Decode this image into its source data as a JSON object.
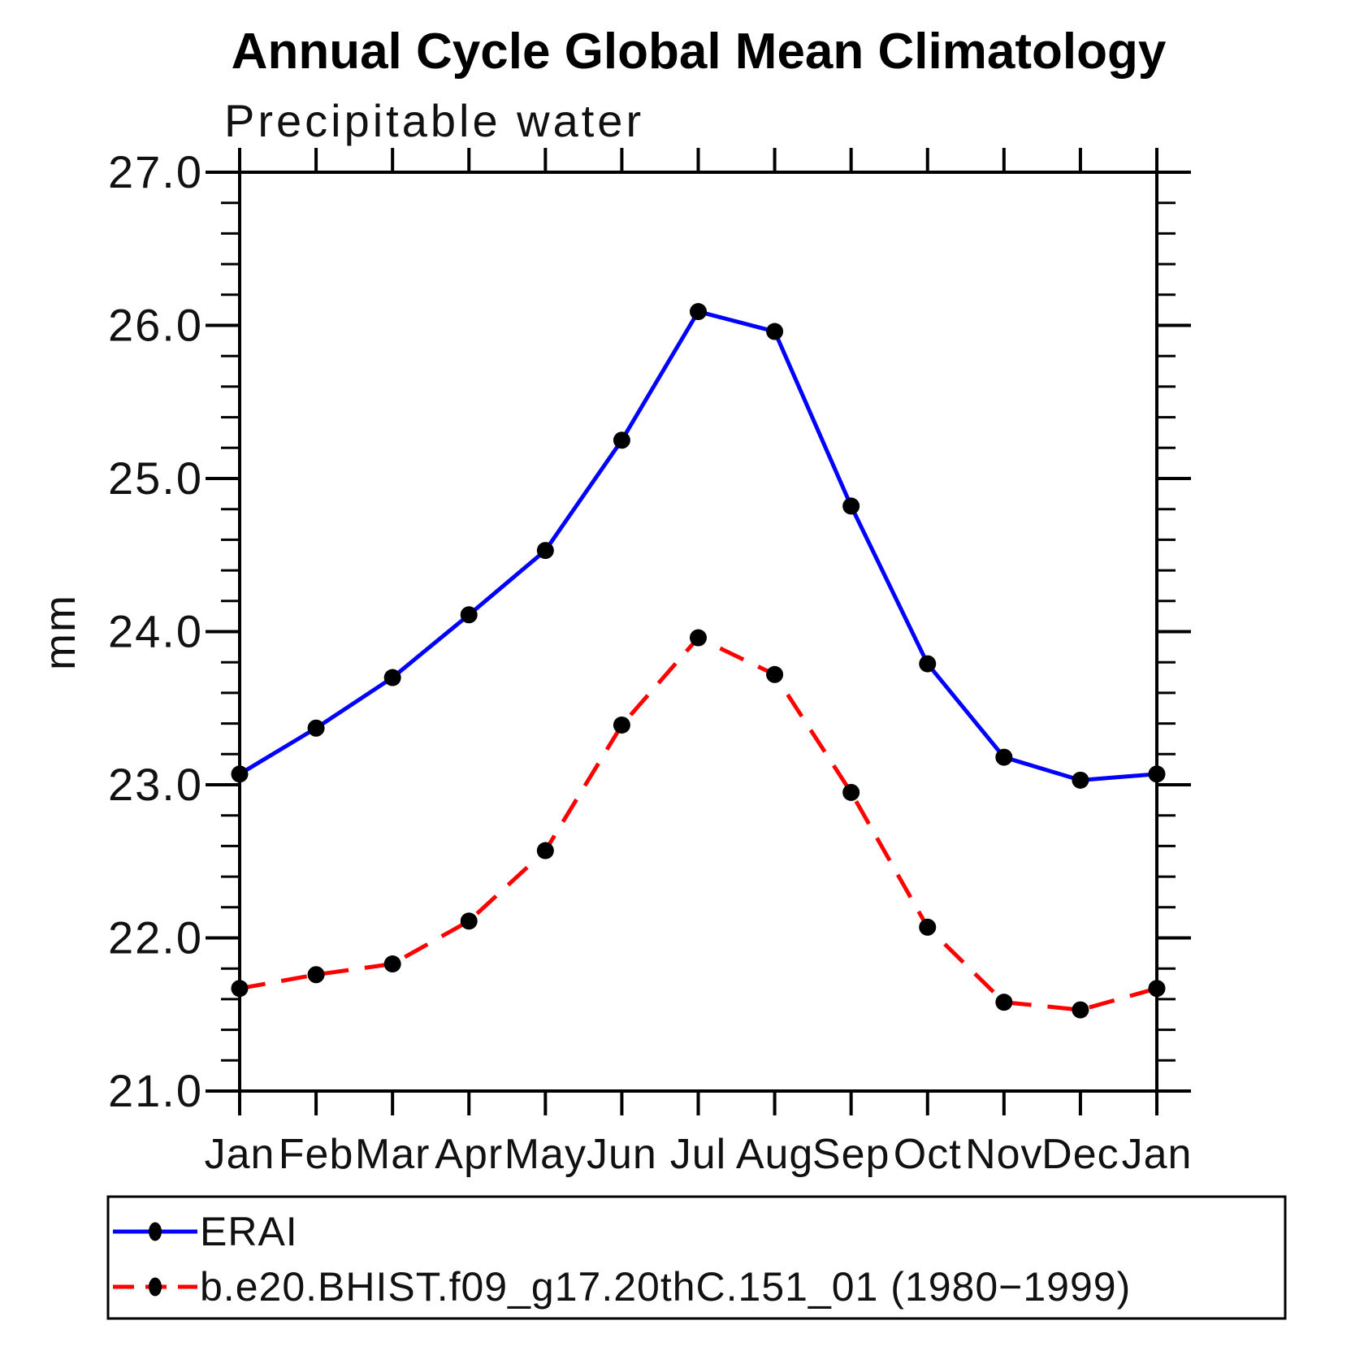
{
  "header": {
    "title": "Annual Cycle Global Mean Climatology",
    "subtitle": "Precipitable water"
  },
  "chart_data": {
    "type": "line",
    "title": "Annual Cycle Global Mean Climatology",
    "subtitle": "Precipitable water",
    "xlabel": "",
    "ylabel": "mm",
    "ylim": [
      21.0,
      27.0
    ],
    "ytick_interval": 1.0,
    "yminor_interval": 0.2,
    "ytick_labels": [
      "27.0",
      "26.0",
      "25.0",
      "24.0",
      "23.0",
      "22.0",
      "21.0"
    ],
    "grid": false,
    "legend_position": "bottom",
    "categories": [
      "Jan",
      "Feb",
      "Mar",
      "Apr",
      "May",
      "Jun",
      "Jul",
      "Aug",
      "Sep",
      "Oct",
      "Nov",
      "Dec",
      "Jan"
    ],
    "series": [
      {
        "name": "ERAI",
        "color": "#0000ff",
        "line_style": "solid",
        "dash": "none",
        "marker": "circle",
        "marker_color": "#000000",
        "values": [
          23.07,
          23.37,
          23.7,
          24.11,
          24.53,
          25.25,
          26.09,
          25.96,
          24.82,
          23.79,
          23.18,
          23.03,
          23.07
        ]
      },
      {
        "name": "b.e20.BHIST.f09_g17.20thC.151_01 (1980−1999)",
        "color": "#ff0000",
        "line_style": "dashed",
        "dash": "32 20",
        "marker": "circle",
        "marker_color": "#000000",
        "values": [
          21.67,
          21.76,
          21.83,
          22.11,
          22.57,
          23.39,
          23.96,
          23.72,
          22.95,
          22.07,
          21.58,
          21.53,
          21.67
        ]
      }
    ]
  }
}
